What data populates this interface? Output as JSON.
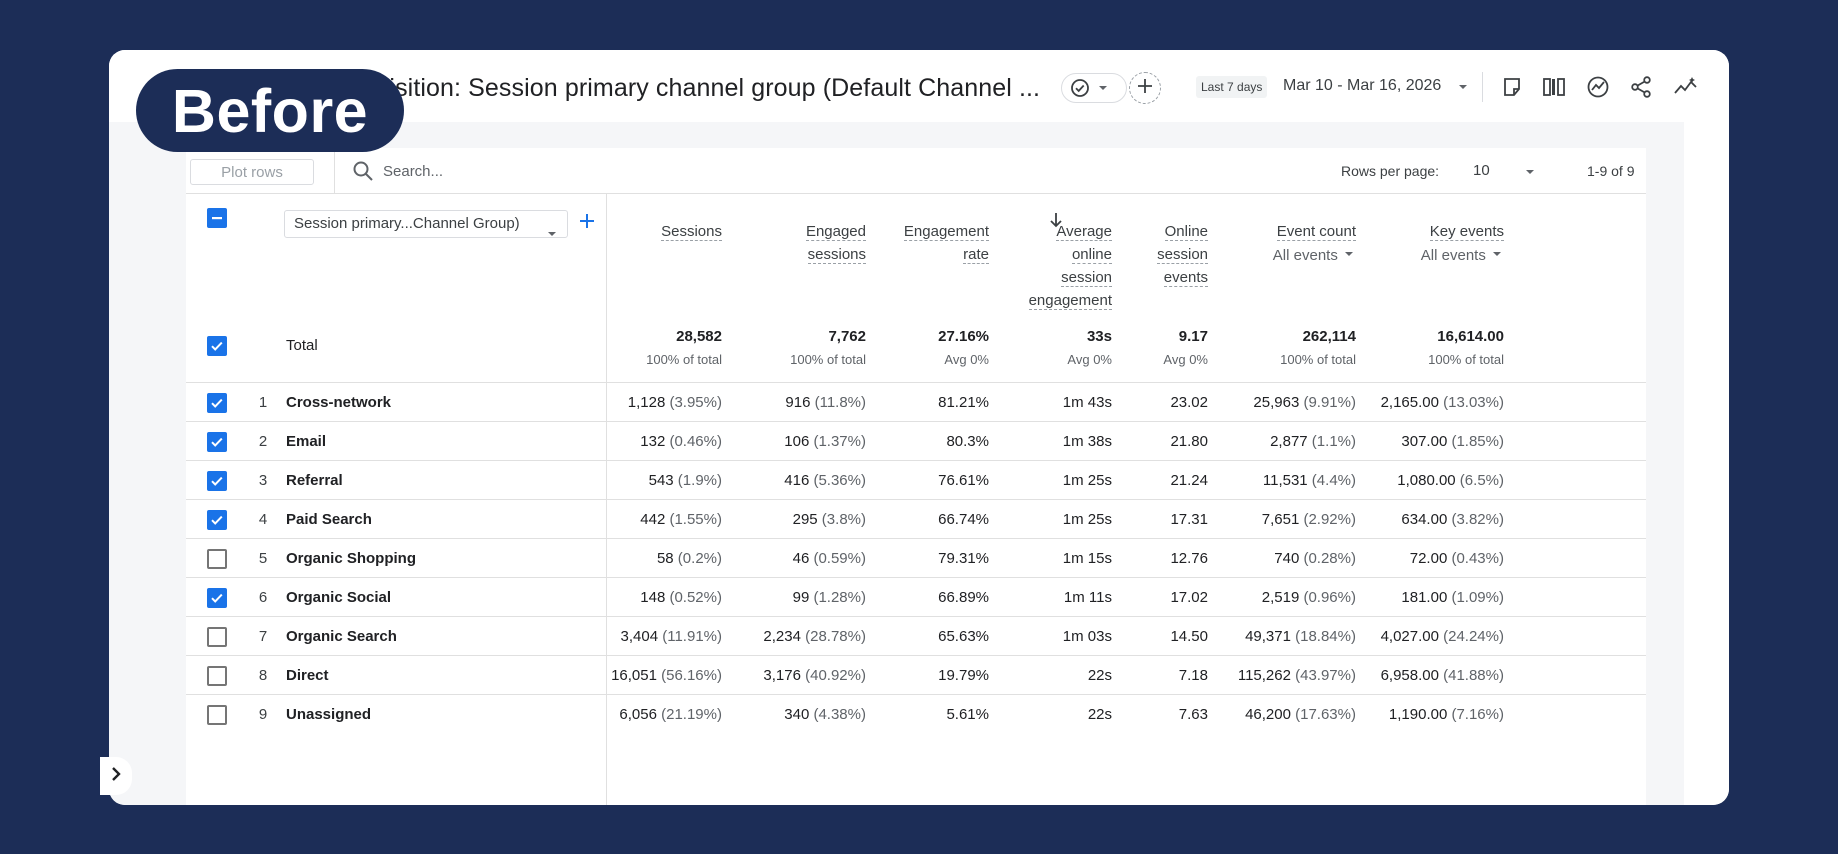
{
  "badge": {
    "label": "Before"
  },
  "header": {
    "title": "Traffic acquisition: Session primary channel group (Default Channel ...",
    "date_chip": "Last 7 days",
    "date_range": "Mar 10 - Mar 16, 2026",
    "icons": [
      "check-circle-icon",
      "add-comparison-icon",
      "notes-icon",
      "compare-icon",
      "insights-icon",
      "share-icon",
      "trend-icon"
    ]
  },
  "toolbar": {
    "plot_rows_label": "Plot rows",
    "search_placeholder": "Search...",
    "rows_per_page_label": "Rows per page:",
    "rows_per_page_value": "10",
    "pagination": "1-9 of 9"
  },
  "table": {
    "dimension_select": "Session primary...Channel Group)",
    "metric_headers": [
      {
        "lines": [
          "Sessions"
        ],
        "sub": ""
      },
      {
        "lines": [
          "Engaged",
          "sessions"
        ],
        "sub": ""
      },
      {
        "lines": [
          "Engagement",
          "rate"
        ],
        "sub": ""
      },
      {
        "lines": [
          "Average",
          "online",
          "session",
          "engagement"
        ],
        "sub": ""
      },
      {
        "lines": [
          "Online",
          "session",
          "events"
        ],
        "sub": ""
      },
      {
        "lines": [
          "Event count"
        ],
        "sub": "All events"
      },
      {
        "lines": [
          "Key events"
        ],
        "sub": "All events"
      }
    ],
    "total": {
      "label": "Total",
      "values": [
        "28,582",
        "7,762",
        "27.16%",
        "33s",
        "9.17",
        "262,114",
        "16,614.00"
      ],
      "subs": [
        "100% of total",
        "100% of total",
        "Avg 0%",
        "Avg 0%",
        "Avg 0%",
        "100% of total",
        "100% of total"
      ]
    },
    "rows": [
      {
        "idx": "1",
        "checked": true,
        "name": "Cross-network",
        "cells": [
          [
            "1,128",
            "(3.95%)"
          ],
          [
            "916",
            "(11.8%)"
          ],
          [
            "81.21%",
            ""
          ],
          [
            "1m 43s",
            ""
          ],
          [
            "23.02",
            ""
          ],
          [
            "25,963",
            "(9.91%)"
          ],
          [
            "2,165.00",
            "(13.03%)"
          ]
        ]
      },
      {
        "idx": "2",
        "checked": true,
        "name": "Email",
        "cells": [
          [
            "132",
            "(0.46%)"
          ],
          [
            "106",
            "(1.37%)"
          ],
          [
            "80.3%",
            ""
          ],
          [
            "1m 38s",
            ""
          ],
          [
            "21.80",
            ""
          ],
          [
            "2,877",
            "(1.1%)"
          ],
          [
            "307.00",
            "(1.85%)"
          ]
        ]
      },
      {
        "idx": "3",
        "checked": true,
        "name": "Referral",
        "cells": [
          [
            "543",
            "(1.9%)"
          ],
          [
            "416",
            "(5.36%)"
          ],
          [
            "76.61%",
            ""
          ],
          [
            "1m 25s",
            ""
          ],
          [
            "21.24",
            ""
          ],
          [
            "11,531",
            "(4.4%)"
          ],
          [
            "1,080.00",
            "(6.5%)"
          ]
        ]
      },
      {
        "idx": "4",
        "checked": true,
        "name": "Paid Search",
        "cells": [
          [
            "442",
            "(1.55%)"
          ],
          [
            "295",
            "(3.8%)"
          ],
          [
            "66.74%",
            ""
          ],
          [
            "1m 25s",
            ""
          ],
          [
            "17.31",
            ""
          ],
          [
            "7,651",
            "(2.92%)"
          ],
          [
            "634.00",
            "(3.82%)"
          ]
        ]
      },
      {
        "idx": "5",
        "checked": false,
        "name": "Organic Shopping",
        "cells": [
          [
            "58",
            "(0.2%)"
          ],
          [
            "46",
            "(0.59%)"
          ],
          [
            "79.31%",
            ""
          ],
          [
            "1m 15s",
            ""
          ],
          [
            "12.76",
            ""
          ],
          [
            "740",
            "(0.28%)"
          ],
          [
            "72.00",
            "(0.43%)"
          ]
        ]
      },
      {
        "idx": "6",
        "checked": true,
        "name": "Organic Social",
        "cells": [
          [
            "148",
            "(0.52%)"
          ],
          [
            "99",
            "(1.28%)"
          ],
          [
            "66.89%",
            ""
          ],
          [
            "1m 11s",
            ""
          ],
          [
            "17.02",
            ""
          ],
          [
            "2,519",
            "(0.96%)"
          ],
          [
            "181.00",
            "(1.09%)"
          ]
        ]
      },
      {
        "idx": "7",
        "checked": false,
        "name": "Organic Search",
        "cells": [
          [
            "3,404",
            "(11.91%)"
          ],
          [
            "2,234",
            "(28.78%)"
          ],
          [
            "65.63%",
            ""
          ],
          [
            "1m 03s",
            ""
          ],
          [
            "14.50",
            ""
          ],
          [
            "49,371",
            "(18.84%)"
          ],
          [
            "4,027.00",
            "(24.24%)"
          ]
        ]
      },
      {
        "idx": "8",
        "checked": false,
        "name": "Direct",
        "cells": [
          [
            "16,051",
            "(56.16%)"
          ],
          [
            "3,176",
            "(40.92%)"
          ],
          [
            "19.79%",
            ""
          ],
          [
            "22s",
            ""
          ],
          [
            "7.18",
            ""
          ],
          [
            "115,262",
            "(43.97%)"
          ],
          [
            "6,958.00",
            "(41.88%)"
          ]
        ]
      },
      {
        "idx": "9",
        "checked": false,
        "name": "Unassigned",
        "cells": [
          [
            "6,056",
            "(21.19%)"
          ],
          [
            "340",
            "(4.38%)"
          ],
          [
            "5.61%",
            ""
          ],
          [
            "22s",
            ""
          ],
          [
            "7.63",
            ""
          ],
          [
            "46,200",
            "(17.63%)"
          ],
          [
            "1,190.00",
            "(7.16%)"
          ]
        ]
      }
    ]
  },
  "colors": {
    "background": "#1c2d57",
    "accent": "#1a73e8",
    "panel": "#f5f6f8"
  }
}
